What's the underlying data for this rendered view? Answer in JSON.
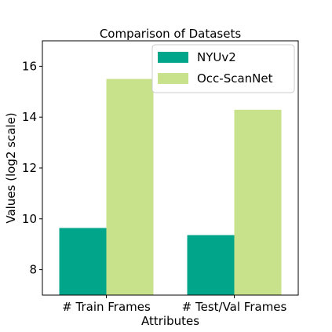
{
  "chart_data": {
    "type": "bar",
    "title": "Comparison of Datasets",
    "xlabel": "Attributes",
    "ylabel": "Values (log2 scale)",
    "categories": [
      "# Train Frames",
      "# Test/Val Frames"
    ],
    "series": [
      {
        "name": "NYUv2",
        "values": [
          9.64,
          9.36
        ],
        "color": "#00a58a"
      },
      {
        "name": "Occ-ScanNet",
        "values": [
          15.5,
          14.29
        ],
        "color": "#c8e28c"
      }
    ],
    "ylim": [
      7,
      17
    ],
    "yticks": [
      8,
      10,
      12,
      14,
      16
    ],
    "grid": false,
    "legend_position": "top-right"
  }
}
